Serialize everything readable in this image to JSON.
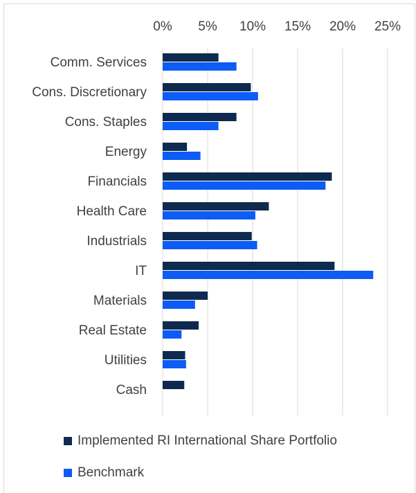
{
  "chart_data": {
    "type": "hbar",
    "categories": [
      "Comm. Services",
      "Cons. Discretionary",
      "Cons. Staples",
      "Energy",
      "Financials",
      "Health Care",
      "Industrials",
      "IT",
      "Materials",
      "Real Estate",
      "Utilities",
      "Cash"
    ],
    "series": [
      {
        "name": "Implemented RI International Share Portfolio",
        "color": "#0e2a4f",
        "values": [
          6.2,
          9.8,
          8.2,
          2.7,
          18.8,
          11.8,
          9.9,
          19.1,
          5.0,
          4.0,
          2.5,
          2.4
        ]
      },
      {
        "name": "Benchmark",
        "color": "#0c5cf5",
        "values": [
          8.2,
          10.6,
          6.2,
          4.2,
          18.1,
          10.3,
          10.5,
          23.4,
          3.6,
          2.1,
          2.6,
          null
        ]
      }
    ],
    "xlim": [
      0,
      25
    ],
    "xticks": [
      {
        "value": 0,
        "label": "0%"
      },
      {
        "value": 5,
        "label": "5%"
      },
      {
        "value": 10,
        "label": "10%"
      },
      {
        "value": 15,
        "label": "15%"
      },
      {
        "value": 20,
        "label": "20%"
      },
      {
        "value": 25,
        "label": "25%"
      }
    ],
    "grid": true,
    "legend": "bottom"
  }
}
